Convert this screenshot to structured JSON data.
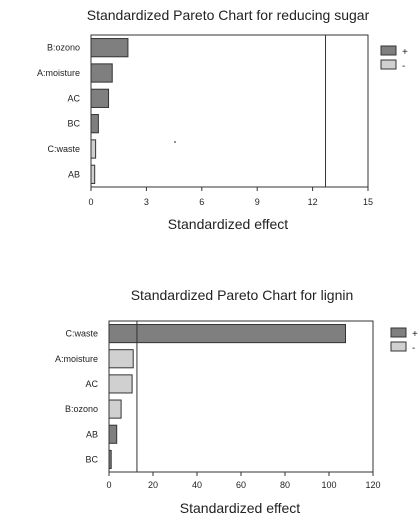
{
  "chart_data": [
    {
      "type": "bar",
      "orientation": "horizontal",
      "title": "Standardized Pareto Chart for reducing sugar",
      "xlabel": "Standardized effect",
      "ylabel": "",
      "xlim": [
        0,
        15
      ],
      "xticks": [
        "0",
        "3",
        "6",
        "9",
        "12",
        "15"
      ],
      "xtick_values": [
        0,
        3,
        6,
        9,
        12,
        15
      ],
      "categories": [
        "B:ozono",
        "A:moisture",
        "AC",
        "BC",
        "C:waste",
        "AB"
      ],
      "values": [
        2.0,
        1.15,
        0.95,
        0.4,
        0.25,
        0.2
      ],
      "signs": [
        "+",
        "+",
        "+",
        "+",
        "-",
        "-"
      ],
      "reference_line": 12.7,
      "legend": {
        "position": "right",
        "labels": [
          "+",
          "-"
        ]
      },
      "colors": {
        "positive": "#7f7f7f",
        "negative": "#d0d0d0"
      }
    },
    {
      "type": "bar",
      "orientation": "horizontal",
      "title": "Standardized Pareto Chart for lignin",
      "xlabel": "Standardized effect",
      "ylabel": "",
      "xlim": [
        0,
        120
      ],
      "xticks": [
        "0",
        "20",
        "40",
        "60",
        "80",
        "100",
        "120"
      ],
      "xtick_values": [
        0,
        20,
        40,
        60,
        80,
        100,
        120
      ],
      "categories": [
        "C:waste",
        "A:moisture",
        "AC",
        "B:ozono",
        "AB",
        "BC"
      ],
      "values": [
        107.5,
        11.0,
        10.5,
        5.5,
        3.5,
        1.0
      ],
      "signs": [
        "+",
        "-",
        "-",
        "-",
        "+",
        "+"
      ],
      "reference_line": 12.7,
      "legend": {
        "position": "right",
        "labels": [
          "+",
          "-"
        ]
      },
      "colors": {
        "positive": "#7f7f7f",
        "negative": "#d0d0d0"
      }
    }
  ]
}
